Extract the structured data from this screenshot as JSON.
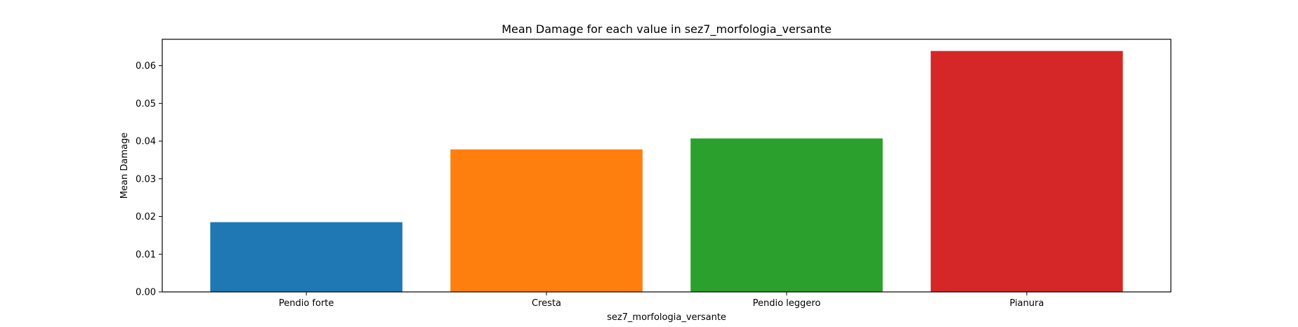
{
  "chart_data": {
    "type": "bar",
    "title": "Mean Damage for each value in sez7_morfologia_versante",
    "xlabel": "sez7_morfologia_versante",
    "ylabel": "Mean Damage",
    "categories": [
      "Pendio forte",
      "Cresta",
      "Pendio leggero",
      "Pianura"
    ],
    "values": [
      0.0185,
      0.0378,
      0.0407,
      0.0639
    ],
    "colors": [
      "#1f77b4",
      "#ff7f0e",
      "#2ca02c",
      "#d62728"
    ],
    "ylim": [
      0,
      0.067
    ],
    "yticks": [
      0.0,
      0.01,
      0.02,
      0.03,
      0.04,
      0.05,
      0.06
    ],
    "ytick_labels": [
      "0.00",
      "0.01",
      "0.02",
      "0.03",
      "0.04",
      "0.05",
      "0.06"
    ],
    "grid": false,
    "legend": false
  }
}
